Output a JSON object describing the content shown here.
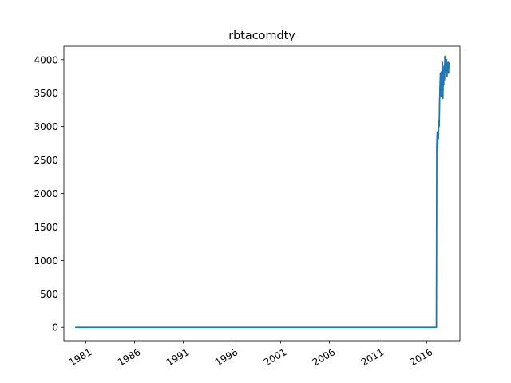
{
  "chart_data": {
    "type": "line",
    "title": "rbtacomdty",
    "xlabel": "",
    "ylabel": "",
    "x_axis_type": "date",
    "xlim": [
      "1978-10-01",
      "2019-06-01"
    ],
    "ylim": [
      -200,
      4200
    ],
    "x_ticks": [
      "1981-01-01",
      "1986-01-01",
      "1991-01-01",
      "1996-01-01",
      "2001-01-01",
      "2006-01-01",
      "2011-01-01",
      "2016-01-01"
    ],
    "x_tick_labels": [
      "1981",
      "1986",
      "1991",
      "1996",
      "2001",
      "2006",
      "2011",
      "2016"
    ],
    "y_ticks": [
      0,
      500,
      1000,
      1500,
      2000,
      2500,
      3000,
      3500,
      4000
    ],
    "y_tick_labels": [
      "0",
      "500",
      "1000",
      "1500",
      "2000",
      "2500",
      "3000",
      "3500",
      "4000"
    ],
    "grid": false,
    "legend": "none",
    "series": [
      {
        "color": "#1f77b4",
        "x": [
          "1979-12-01",
          "2017-01-01",
          "2017-01-15",
          "2017-02-01",
          "2017-02-15",
          "2017-03-01",
          "2017-03-15",
          "2017-04-01",
          "2017-04-15",
          "2017-05-01",
          "2017-05-15",
          "2017-06-01",
          "2017-06-15",
          "2017-07-01",
          "2017-07-15",
          "2017-08-01",
          "2017-08-15",
          "2017-09-01",
          "2017-09-15",
          "2017-10-01",
          "2017-10-15",
          "2017-11-01",
          "2017-11-15",
          "2017-12-01",
          "2017-12-15",
          "2018-01-01",
          "2018-01-15",
          "2018-02-01",
          "2018-02-15",
          "2018-03-01",
          "2018-03-15",
          "2018-04-01",
          "2018-04-15",
          "2018-05-01"
        ],
        "y": [
          0,
          0,
          2700,
          2920,
          2650,
          2900,
          2820,
          3080,
          3000,
          3380,
          3600,
          3800,
          3450,
          3700,
          3820,
          3500,
          3960,
          3420,
          3780,
          3620,
          3900,
          3700,
          4050,
          3850,
          3950,
          3800,
          4000,
          3750,
          3900,
          3850,
          3960,
          3800,
          3950,
          3930
        ]
      }
    ]
  }
}
